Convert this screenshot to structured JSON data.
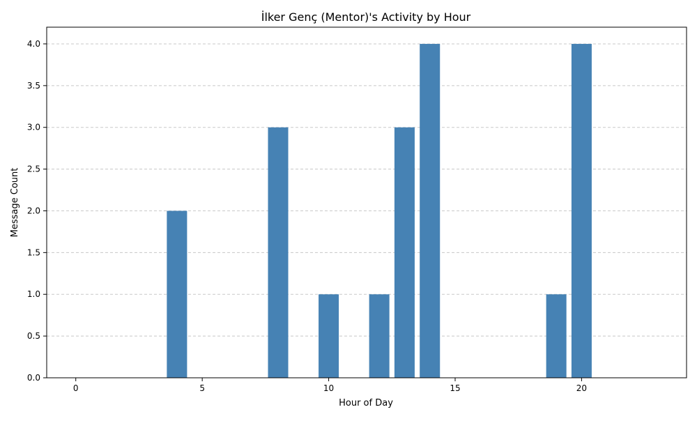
{
  "chart_data": {
    "type": "bar",
    "title": "İlker Genç (Mentor)'s Activity by Hour",
    "xlabel": "Hour of Day",
    "ylabel": "Message Count",
    "x": [
      4,
      8,
      10,
      12,
      13,
      14,
      19,
      20
    ],
    "values": [
      2,
      3,
      1,
      1,
      3,
      4,
      1,
      4
    ],
    "xlim": [
      -1.15,
      24.15
    ],
    "ylim": [
      0,
      4.2
    ],
    "xticks": [
      0,
      5,
      10,
      15,
      20
    ],
    "yticks": [
      0.0,
      0.5,
      1.0,
      1.5,
      2.0,
      2.5,
      3.0,
      3.5,
      4.0
    ],
    "ytick_labels": [
      "0.0",
      "0.5",
      "1.0",
      "1.5",
      "2.0",
      "2.5",
      "3.0",
      "3.5",
      "4.0"
    ],
    "grid": "y-dashed",
    "bar_color": "#4682b4",
    "grid_color": "#c8c8c8"
  }
}
